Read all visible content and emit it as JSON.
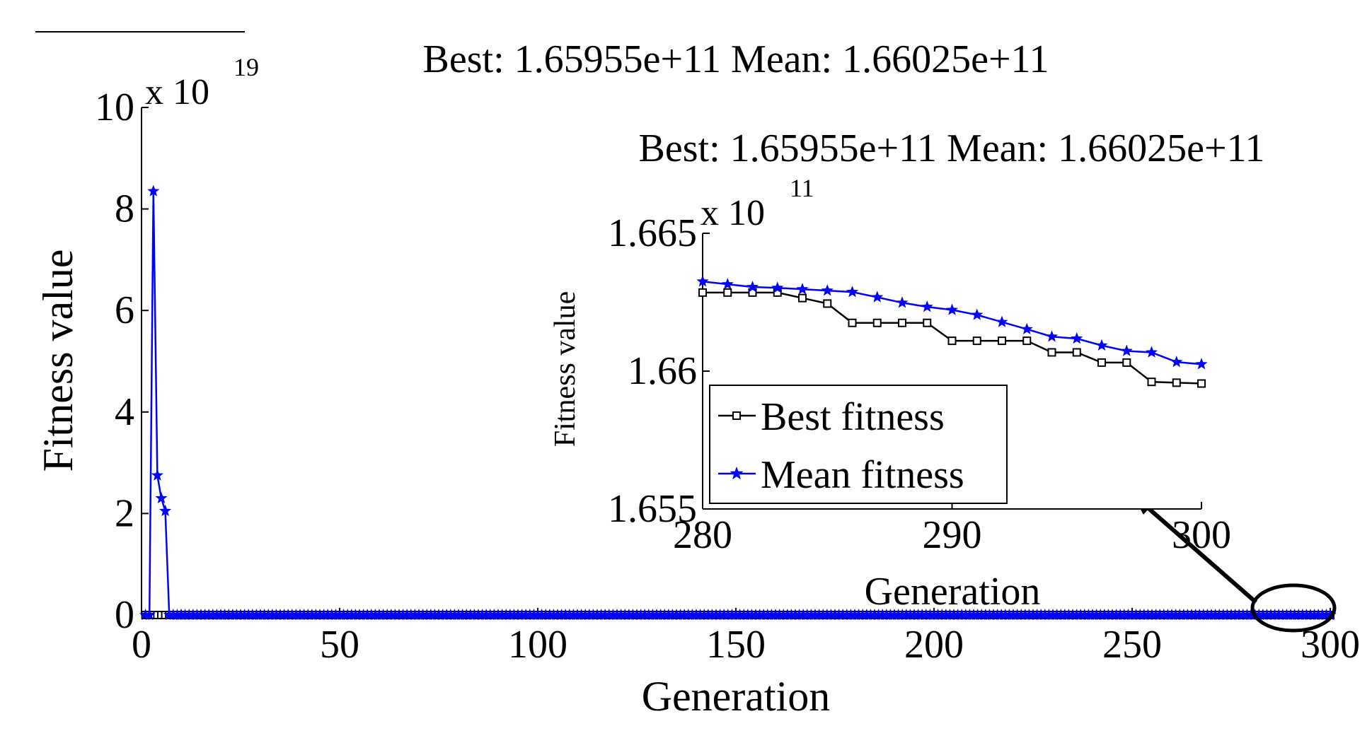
{
  "chart_data": [
    {
      "type": "line",
      "id": "main",
      "title": "Best: 1.65955e+11 Mean: 1.66025e+11",
      "xlabel": "Generation",
      "ylabel": "Fitness value",
      "exponent_base": "x 10",
      "exponent_power": "19",
      "xlim": [
        0,
        300
      ],
      "ylim": [
        0,
        10
      ],
      "xticks": [
        0,
        50,
        100,
        150,
        200,
        250,
        300
      ],
      "yticks": [
        0,
        2,
        4,
        6,
        8,
        10
      ],
      "xtick_labels": [
        "0",
        "50",
        "100",
        "150",
        "200",
        "250",
        "300"
      ],
      "ytick_labels": [
        "0",
        "2",
        "4",
        "6",
        "8",
        "10"
      ],
      "series": [
        {
          "name": "Best fitness",
          "color": "#000000",
          "marker": "square",
          "x": [
            1,
            2,
            3,
            4,
            5,
            6,
            7,
            8,
            9,
            10,
            300
          ],
          "y": [
            0,
            0,
            0,
            0,
            0,
            0,
            0,
            0,
            0,
            0,
            0
          ]
        },
        {
          "name": "Mean fitness",
          "color": "#0000ff",
          "marker": "star",
          "x": [
            1,
            2,
            3,
            4,
            5,
            6,
            7,
            8,
            9,
            10,
            300
          ],
          "y": [
            0,
            0,
            8.35,
            2.75,
            2.3,
            2.05,
            0,
            0,
            0,
            0,
            0
          ]
        }
      ],
      "annotation": "ellipse around generations 280–300 with arrow pointing to zoomed inset"
    },
    {
      "type": "line",
      "id": "inset",
      "title": "Best: 1.65955e+11 Mean: 1.66025e+11",
      "xlabel": "Generation",
      "ylabel": "Fitness value",
      "exponent_base": "x 10",
      "exponent_power": "11",
      "xlim": [
        280,
        300
      ],
      "ylim": [
        1.655,
        1.665
      ],
      "xticks": [
        280,
        290,
        300
      ],
      "yticks": [
        1.655,
        1.66,
        1.665
      ],
      "xtick_labels": [
        "280",
        "290",
        "300"
      ],
      "ytick_labels": [
        "1.655",
        "1.66",
        "1.665"
      ],
      "legend": {
        "position": "bottom-left",
        "entries": [
          "Best fitness",
          "Mean fitness"
        ]
      },
      "series": [
        {
          "name": "Best fitness",
          "color": "#000000",
          "marker": "square",
          "x": [
            280,
            281,
            282,
            283,
            284,
            285,
            286,
            287,
            288,
            289,
            290,
            291,
            292,
            293,
            294,
            295,
            296,
            297,
            298,
            299,
            300
          ],
          "y": [
            1.66285,
            1.66285,
            1.66285,
            1.66285,
            1.66265,
            1.66245,
            1.66175,
            1.66175,
            1.66175,
            1.66175,
            1.6611,
            1.6611,
            1.6611,
            1.6611,
            1.66068,
            1.66068,
            1.66031,
            1.66031,
            1.65961,
            1.65958,
            1.65955
          ]
        },
        {
          "name": "Mean fitness",
          "color": "#0000ff",
          "marker": "star",
          "x": [
            280,
            281,
            282,
            283,
            284,
            285,
            286,
            287,
            288,
            289,
            290,
            291,
            292,
            293,
            294,
            295,
            296,
            297,
            298,
            299,
            300
          ],
          "y": [
            1.66325,
            1.66315,
            1.66305,
            1.66302,
            1.66297,
            1.66292,
            1.66287,
            1.66268,
            1.66248,
            1.66233,
            1.66222,
            1.66204,
            1.66178,
            1.66152,
            1.66125,
            1.66118,
            1.66093,
            1.66073,
            1.66068,
            1.66033,
            1.66025
          ]
        }
      ]
    }
  ]
}
